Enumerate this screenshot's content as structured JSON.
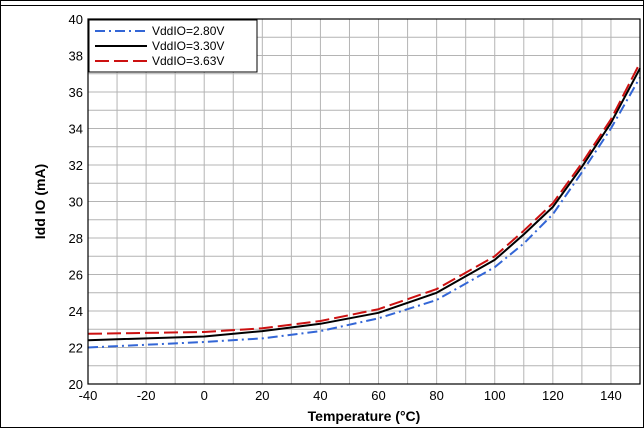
{
  "chart_data": {
    "type": "line",
    "xlabel": "Temperature (°C)",
    "ylabel": "Idd IO (mA)",
    "xlim": [
      -40,
      150
    ],
    "ylim": [
      20,
      40
    ],
    "x_ticks": [
      -40,
      -20,
      0,
      20,
      40,
      60,
      80,
      100,
      120,
      140
    ],
    "y_ticks": [
      20,
      22,
      24,
      26,
      28,
      30,
      32,
      34,
      36,
      38,
      40
    ],
    "grid": true,
    "legend_position": "top-left",
    "series": [
      {
        "name": "VddIO=2.80V",
        "color": "#3366d6",
        "dash": "dashdot",
        "points": [
          [
            -40,
            22.0
          ],
          [
            0,
            22.3
          ],
          [
            20,
            22.5
          ],
          [
            40,
            22.9
          ],
          [
            60,
            23.6
          ],
          [
            80,
            24.6
          ],
          [
            100,
            26.4
          ],
          [
            110,
            27.7
          ],
          [
            120,
            29.3
          ],
          [
            130,
            31.6
          ],
          [
            140,
            34.0
          ],
          [
            150,
            36.8
          ]
        ]
      },
      {
        "name": "VddIO=3.30V",
        "color": "#000000",
        "dash": "solid",
        "points": [
          [
            -40,
            22.4
          ],
          [
            0,
            22.6
          ],
          [
            20,
            22.9
          ],
          [
            40,
            23.3
          ],
          [
            60,
            23.9
          ],
          [
            80,
            25.0
          ],
          [
            100,
            26.8
          ],
          [
            110,
            28.2
          ],
          [
            120,
            29.7
          ],
          [
            130,
            31.9
          ],
          [
            140,
            34.3
          ],
          [
            150,
            37.3
          ]
        ]
      },
      {
        "name": "VddIO=3.63V",
        "color": "#cc1111",
        "dash": "dash",
        "points": [
          [
            -40,
            22.75
          ],
          [
            0,
            22.85
          ],
          [
            20,
            23.05
          ],
          [
            40,
            23.45
          ],
          [
            60,
            24.1
          ],
          [
            80,
            25.2
          ],
          [
            100,
            27.0
          ],
          [
            110,
            28.4
          ],
          [
            120,
            29.9
          ],
          [
            130,
            32.1
          ],
          [
            140,
            34.5
          ],
          [
            150,
            37.6
          ]
        ]
      }
    ]
  }
}
